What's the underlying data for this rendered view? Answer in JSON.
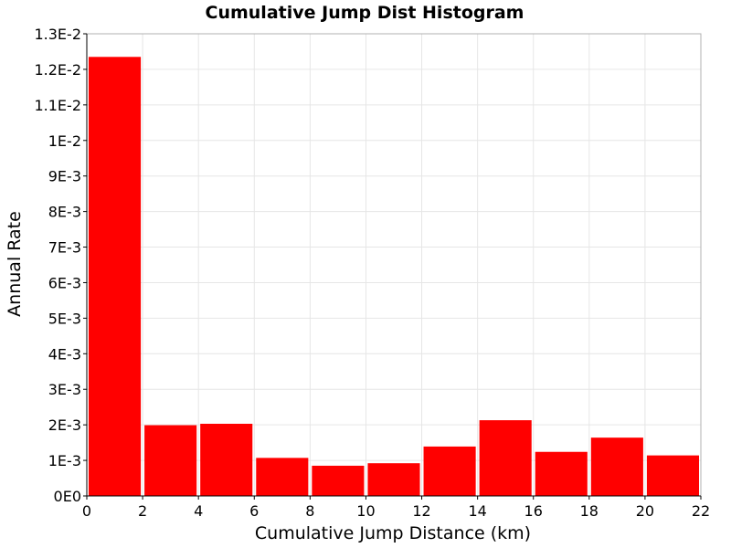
{
  "chart_data": {
    "type": "bar",
    "title": "Cumulative Jump Dist Histogram",
    "xlabel": "Cumulative Jump Distance (km)",
    "ylabel": "Annual Rate",
    "xlim": [
      0,
      22
    ],
    "ylim": [
      0,
      0.013
    ],
    "grid": true,
    "legend": "none",
    "bar_color": "#ff0000",
    "x_ticks": [
      0,
      2,
      4,
      6,
      8,
      10,
      12,
      14,
      16,
      18,
      20,
      22
    ],
    "x_tick_labels": [
      "0",
      "2",
      "4",
      "6",
      "8",
      "10",
      "12",
      "14",
      "16",
      "18",
      "20",
      "22"
    ],
    "y_ticks": [
      0,
      0.001,
      0.002,
      0.003,
      0.004,
      0.005,
      0.006,
      0.007,
      0.008,
      0.009,
      0.01,
      0.011,
      0.012,
      0.013
    ],
    "y_tick_labels": [
      "0E0",
      "1E-3",
      "2E-3",
      "3E-3",
      "4E-3",
      "5E-3",
      "6E-3",
      "7E-3",
      "8E-3",
      "9E-3",
      "1E-2",
      "1.1E-2",
      "1.2E-2",
      "1.3E-2"
    ],
    "bins": [
      {
        "x0": 0,
        "x1": 2,
        "value": 0.01235
      },
      {
        "x0": 2,
        "x1": 4,
        "value": 0.00199
      },
      {
        "x0": 4,
        "x1": 6,
        "value": 0.00203
      },
      {
        "x0": 6,
        "x1": 8,
        "value": 0.00107
      },
      {
        "x0": 8,
        "x1": 10,
        "value": 0.00085
      },
      {
        "x0": 10,
        "x1": 12,
        "value": 0.00092
      },
      {
        "x0": 12,
        "x1": 14,
        "value": 0.00139
      },
      {
        "x0": 14,
        "x1": 16,
        "value": 0.00213
      },
      {
        "x0": 16,
        "x1": 18,
        "value": 0.00124
      },
      {
        "x0": 18,
        "x1": 20,
        "value": 0.00164
      },
      {
        "x0": 20,
        "x1": 22,
        "value": 0.00114
      }
    ]
  }
}
